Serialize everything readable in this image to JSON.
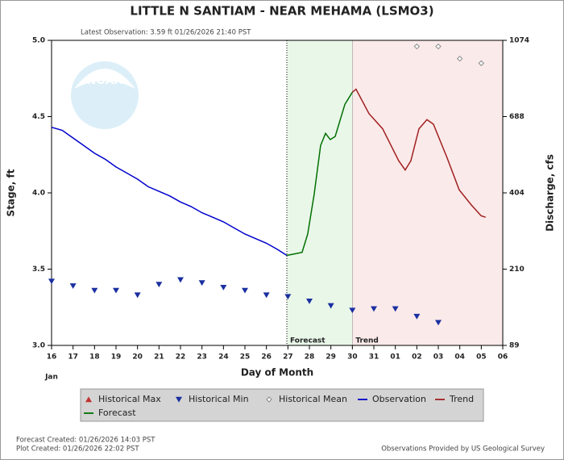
{
  "chart_data": {
    "type": "hydrograph",
    "title": "LITTLE N SANTIAM - NEAR MEHAMA  (LSMO3)",
    "subtitle": "Latest Observation: 3.59 ft 01/26/2026 21:40 PST",
    "logo_text": "NOAA",
    "ylabel": "Stage, ft",
    "y2label": "Discharge, cfs",
    "xlabel": "Day of Month",
    "month_label": "Jan",
    "ylim": [
      3.0,
      5.0
    ],
    "yticks": [
      {
        "value": 3.0,
        "label": "3.0"
      },
      3.5,
      {
        "value": 4.0,
        "label": "4.0"
      },
      4.5,
      {
        "value": 5.0,
        "label": "5.0"
      }
    ],
    "y2lim": [
      89,
      1074
    ],
    "y2ticks": [
      89,
      210,
      404,
      688,
      1074
    ],
    "y2ticks_at_yticks": true,
    "xlim": [
      0,
      21
    ],
    "xticks": [
      {
        "value": 0,
        "label": "16"
      },
      {
        "value": 1,
        "label": "17"
      },
      {
        "value": 2,
        "label": "18"
      },
      {
        "value": 3,
        "label": "19"
      },
      {
        "value": 4,
        "label": "20"
      },
      {
        "value": 5,
        "label": "21"
      },
      {
        "value": 6,
        "label": "22"
      },
      {
        "value": 7,
        "label": "23"
      },
      {
        "value": 8,
        "label": "24"
      },
      {
        "value": 9,
        "label": "25"
      },
      {
        "value": 10,
        "label": "26"
      },
      {
        "value": 11,
        "label": "27"
      },
      {
        "value": 12,
        "label": "28"
      },
      {
        "value": 13,
        "label": "29"
      },
      {
        "value": 14,
        "label": "30"
      },
      {
        "value": 15,
        "label": "31"
      },
      {
        "value": 16,
        "label": "01"
      },
      {
        "value": 17,
        "label": "02"
      },
      {
        "value": 18,
        "label": "03"
      },
      {
        "value": 19,
        "label": "04"
      },
      {
        "value": 20,
        "label": "05"
      },
      {
        "value": 21,
        "label": "06"
      }
    ],
    "regions": [
      {
        "label": "Forecast",
        "from": 10.95,
        "to": 14,
        "color": "#e9f7e9"
      },
      {
        "label": "Trend",
        "from": 14,
        "to": 21,
        "color": "#fbeaea"
      }
    ],
    "series": [
      {
        "name": "Historical Max",
        "color": "#c03030",
        "marker": "triangle-up",
        "x": [],
        "values": []
      },
      {
        "name": "Historical Min",
        "color": "#1a2fa0",
        "marker": "triangle-down",
        "x": [
          0,
          1,
          2,
          3,
          4,
          5,
          6,
          7,
          8,
          9,
          10,
          11,
          12,
          13,
          14,
          15,
          16,
          17,
          18
        ],
        "values": [
          3.42,
          3.39,
          3.36,
          3.36,
          3.33,
          3.4,
          3.43,
          3.41,
          3.38,
          3.36,
          3.33,
          3.32,
          3.29,
          3.26,
          3.23,
          3.24,
          3.24,
          3.19,
          3.15
        ]
      },
      {
        "name": "Historical Mean",
        "color": "#888888",
        "marker": "diamond",
        "x": [
          17,
          18,
          19,
          20
        ],
        "values": [
          4.96,
          4.96,
          4.88,
          4.85
        ]
      },
      {
        "name": "Observation",
        "color": "#0000cc",
        "marker": "line",
        "x": [
          0,
          0.5,
          1,
          1.5,
          2,
          2.5,
          3,
          3.5,
          4,
          4.5,
          5,
          5.5,
          6,
          6.5,
          7,
          7.5,
          8,
          8.5,
          9,
          9.5,
          10,
          10.5,
          10.95
        ],
        "values": [
          4.43,
          4.41,
          4.36,
          4.31,
          4.26,
          4.22,
          4.17,
          4.13,
          4.09,
          4.04,
          4.01,
          3.98,
          3.94,
          3.91,
          3.87,
          3.84,
          3.81,
          3.77,
          3.73,
          3.7,
          3.67,
          3.63,
          3.59
        ]
      },
      {
        "name": "Trend",
        "color": "#a02020",
        "marker": "line",
        "x": [
          14,
          14.17,
          14.77,
          15.41,
          16.16,
          16.46,
          16.72,
          17.1,
          17.47,
          17.77,
          18.41,
          18.97,
          19.54,
          19.99,
          20.2
        ],
        "values": [
          4.66,
          4.68,
          4.52,
          4.42,
          4.21,
          4.15,
          4.21,
          4.42,
          4.48,
          4.45,
          4.23,
          4.02,
          3.92,
          3.85,
          3.84
        ]
      },
      {
        "name": "Forecast",
        "color": "#007000",
        "marker": "line",
        "x": [
          10.95,
          11.66,
          11.92,
          12.22,
          12.52,
          12.75,
          12.97,
          13.2,
          13.65,
          14.0
        ],
        "values": [
          3.59,
          3.61,
          3.73,
          3.99,
          4.31,
          4.39,
          4.35,
          4.37,
          4.58,
          4.66
        ]
      }
    ],
    "footer_left": [
      "Forecast Created: 01/26/2026 14:03 PST",
      "Plot Created: 01/26/2026 22:02 PST"
    ],
    "footer_right": "Observations Provided by US Geological Survey"
  }
}
